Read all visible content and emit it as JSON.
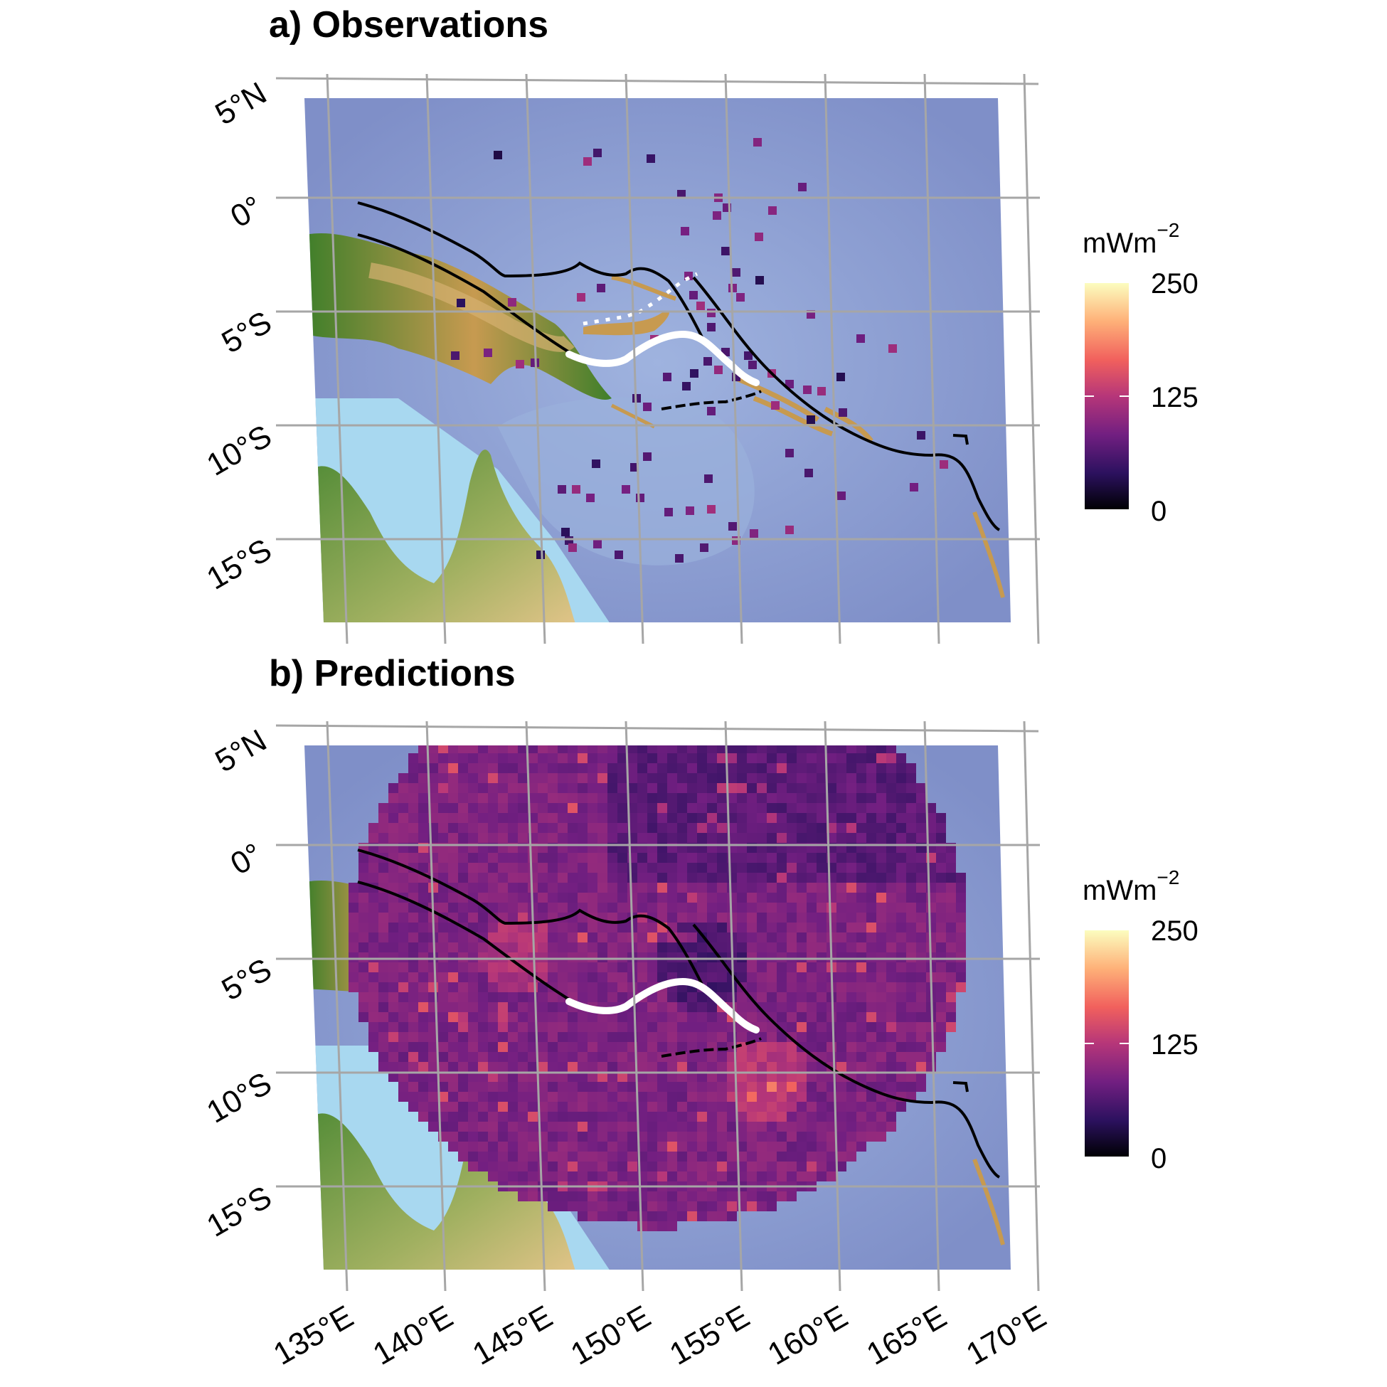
{
  "panels": [
    {
      "title": "a) Observations",
      "kind": "observations"
    },
    {
      "title": "b) Predictions",
      "kind": "predictions"
    }
  ],
  "axes": {
    "lon_ticks": [
      "135°E",
      "140°E",
      "145°E",
      "150°E",
      "155°E",
      "160°E",
      "165°E",
      "170°E"
    ],
    "lat_ticks": [
      "5°N",
      "0°",
      "5°S",
      "10°S",
      "15°S"
    ]
  },
  "legend": {
    "title": "mWm",
    "title_superscript": "−2",
    "labels": [
      "250",
      "125",
      "0"
    ],
    "colormap": [
      "#fcfdbf",
      "#feb078",
      "#f1605d",
      "#b63679",
      "#721f81",
      "#2c115f",
      "#000004"
    ]
  },
  "colors": {
    "ocean_deep": "#7f8fc8",
    "ocean_shallow": "#a8d8f0",
    "land_low": "#3f7f2a",
    "land_high": "#d6b070",
    "boundary_line": "#000000",
    "trench_highlight": "#ffffff"
  }
}
